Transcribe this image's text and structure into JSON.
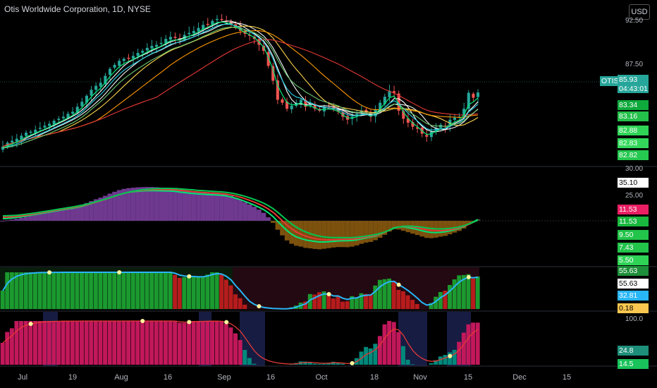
{
  "header": {
    "title": "Otis Worldwide Corporation, 1D, NYSE",
    "currency": "USD"
  },
  "price_axis": {
    "ticks": [
      "92.50",
      "87.50",
      "30.00",
      "25.00",
      "100.0"
    ]
  },
  "last_price": {
    "symbol": "OTIS",
    "value": "85.93",
    "countdown": "04:43:01"
  },
  "ma_tags": [
    "83.34",
    "83.16",
    "82.88",
    "82.83",
    "82.82"
  ],
  "pane2_tags": [
    "35.10",
    "11.53",
    "11.53",
    "9.50",
    "7.43",
    "5.50"
  ],
  "pane3_tags": [
    "55.63",
    "55.63",
    "32.81",
    "0.18"
  ],
  "pane4_tags": [
    "24.8",
    "14.5"
  ],
  "x_axis": {
    "labels": [
      "Jul",
      "19",
      "Aug",
      "16",
      "Sep",
      "16",
      "Oct",
      "18",
      "Nov",
      "15",
      "Dec",
      "15"
    ]
  },
  "colors": {
    "up": "#26a69a",
    "down": "#ef5350",
    "green": "#00e676",
    "magenta": "#e91e63",
    "cyan": "#29b6f6",
    "background": "#000000"
  },
  "chart_data": {
    "type": "candlestick",
    "title": "Otis Worldwide Corporation, 1D, NYSE",
    "x": [
      "2021-06-25",
      "2021-06-28",
      "2021-06-29",
      "2021-06-30",
      "2021-07-01",
      "2021-07-02",
      "2021-07-06",
      "2021-07-07",
      "2021-07-08",
      "2021-07-09",
      "2021-07-12",
      "2021-07-13",
      "2021-07-14",
      "2021-07-15",
      "2021-07-16",
      "2021-07-19",
      "2021-07-20",
      "2021-07-21",
      "2021-07-22",
      "2021-07-23",
      "2021-07-26",
      "2021-07-27",
      "2021-07-28",
      "2021-07-29",
      "2021-07-30",
      "2021-08-02",
      "2021-08-03",
      "2021-08-04",
      "2021-08-05",
      "2021-08-06",
      "2021-08-09",
      "2021-08-10",
      "2021-08-11",
      "2021-08-12",
      "2021-08-13",
      "2021-08-16",
      "2021-08-17",
      "2021-08-18",
      "2021-08-19",
      "2021-08-20",
      "2021-08-23",
      "2021-08-24",
      "2021-08-25",
      "2021-08-26",
      "2021-08-27",
      "2021-08-30",
      "2021-08-31",
      "2021-09-01",
      "2021-09-02",
      "2021-09-03",
      "2021-09-07",
      "2021-09-08",
      "2021-09-09",
      "2021-09-10",
      "2021-09-13",
      "2021-09-14",
      "2021-09-15",
      "2021-09-16",
      "2021-09-17",
      "2021-09-20",
      "2021-09-21",
      "2021-09-22",
      "2021-09-23",
      "2021-09-24",
      "2021-09-27",
      "2021-09-28",
      "2021-09-29",
      "2021-09-30",
      "2021-10-01",
      "2021-10-04",
      "2021-10-05",
      "2021-10-06",
      "2021-10-07",
      "2021-10-08",
      "2021-10-11",
      "2021-10-12",
      "2021-10-13",
      "2021-10-14",
      "2021-10-15",
      "2021-10-18",
      "2021-10-19",
      "2021-10-20",
      "2021-10-21",
      "2021-10-22",
      "2021-10-25",
      "2021-10-26",
      "2021-10-27",
      "2021-10-28",
      "2021-10-29",
      "2021-11-01",
      "2021-11-02",
      "2021-11-03",
      "2021-11-04",
      "2021-11-05",
      "2021-11-08",
      "2021-11-09",
      "2021-11-10",
      "2021-11-11",
      "2021-11-12",
      "2021-11-15",
      "2021-11-16",
      "2021-11-17",
      "2021-11-18"
    ],
    "close": [
      80.5,
      80.9,
      81.1,
      81.3,
      81.6,
      81.9,
      82.0,
      82.2,
      82.4,
      82.6,
      82.8,
      83.1,
      83.3,
      83.5,
      83.8,
      84.0,
      84.5,
      85.0,
      85.6,
      86.2,
      86.6,
      86.9,
      87.6,
      88.3,
      88.7,
      89.1,
      89.3,
      89.4,
      89.6,
      89.9,
      90.1,
      90.4,
      90.6,
      90.7,
      90.9,
      91.3,
      91.5,
      91.4,
      91.3,
      91.7,
      91.9,
      92.1,
      92.4,
      92.7,
      92.8,
      93.1,
      93.3,
      93.2,
      93.0,
      92.8,
      92.4,
      92.1,
      91.8,
      91.6,
      91.3,
      90.7,
      90.1,
      88.6,
      87.1,
      85.2,
      84.9,
      84.3,
      84.6,
      84.9,
      85.2,
      84.5,
      84.7,
      84.3,
      84.1,
      84.5,
      84.4,
      84.3,
      84.0,
      83.5,
      83.2,
      83.5,
      83.8,
      84.1,
      83.9,
      83.5,
      84.2,
      84.9,
      85.5,
      86.1,
      85.9,
      84.1,
      83.3,
      82.9,
      82.5,
      82.3,
      81.8,
      81.5,
      82.0,
      82.4,
      82.7,
      82.5,
      83.2,
      83.4,
      83.5,
      84.3,
      85.9,
      85.4,
      85.93
    ],
    "ylim": [
      80,
      93.5
    ],
    "legend": "none",
    "grid": false
  }
}
